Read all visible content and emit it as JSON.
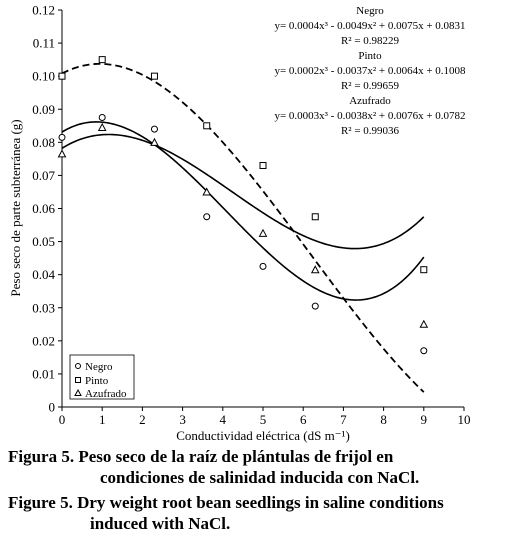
{
  "chart_data": {
    "type": "scatter",
    "xlabel": "Conductividad eléctrica (dS m⁻¹)",
    "ylabel": "Peso seco de parte subterránea (g)",
    "xlim": [
      0,
      10
    ],
    "ylim": [
      0,
      0.12
    ],
    "x_ticks": [
      "0",
      "1",
      "2",
      "3",
      "4",
      "5",
      "6",
      "7",
      "8",
      "9",
      "10"
    ],
    "y_ticks": [
      "0",
      "0.01",
      "0.02",
      "0.03",
      "0.04",
      "0.05",
      "0.06",
      "0.07",
      "0.08",
      "0.09",
      "0.10",
      "0.11",
      "0.12"
    ],
    "legend_position": "bottom-left",
    "series": [
      {
        "name": "Negro",
        "marker": "circle",
        "line": "solid",
        "x": [
          0,
          1,
          2.3,
          3.6,
          5,
          6.3,
          9
        ],
        "y": [
          0.0815,
          0.0875,
          0.084,
          0.0575,
          0.0425,
          0.0305,
          0.017
        ],
        "coefficients": [
          0.0004,
          -0.0049,
          0.0075,
          0.0831
        ],
        "equation": "y= 0.0004x³ - 0.0049x² + 0.0075x + 0.0831",
        "r2": "R² = 0.98229"
      },
      {
        "name": "Pinto",
        "marker": "square",
        "line": "dashed",
        "x": [
          0,
          1,
          2.3,
          3.6,
          5,
          6.3,
          9
        ],
        "y": [
          0.1,
          0.105,
          0.1,
          0.085,
          0.073,
          0.0575,
          0.0415
        ],
        "coefficients": [
          0.0002,
          -0.0037,
          0.0064,
          0.1008
        ],
        "equation": "y= 0.0002x³ - 0.0037x² + 0.0064x + 0.1008",
        "r2": "R² = 0.99659"
      },
      {
        "name": "Azufrado",
        "marker": "triangle",
        "line": "solid",
        "x": [
          0,
          1,
          2.3,
          3.6,
          5,
          6.3,
          9
        ],
        "y": [
          0.0765,
          0.0845,
          0.08,
          0.065,
          0.0525,
          0.0415,
          0.025
        ],
        "coefficients": [
          0.0003,
          -0.0038,
          0.0076,
          0.0782
        ],
        "equation": "y= 0.0003x³ - 0.0038x² + 0.0076x + 0.0782",
        "r2": "R² = 0.99036"
      }
    ]
  },
  "captions": {
    "es_line1": "Figura 5. Peso seco de la raíz de plántulas de frijol en",
    "es_line2": "condiciones de salinidad inducida con NaCl.",
    "en_line1": "Figure 5. Dry weight root bean seedlings in saline conditions",
    "en_line2": "induced with NaCl."
  }
}
